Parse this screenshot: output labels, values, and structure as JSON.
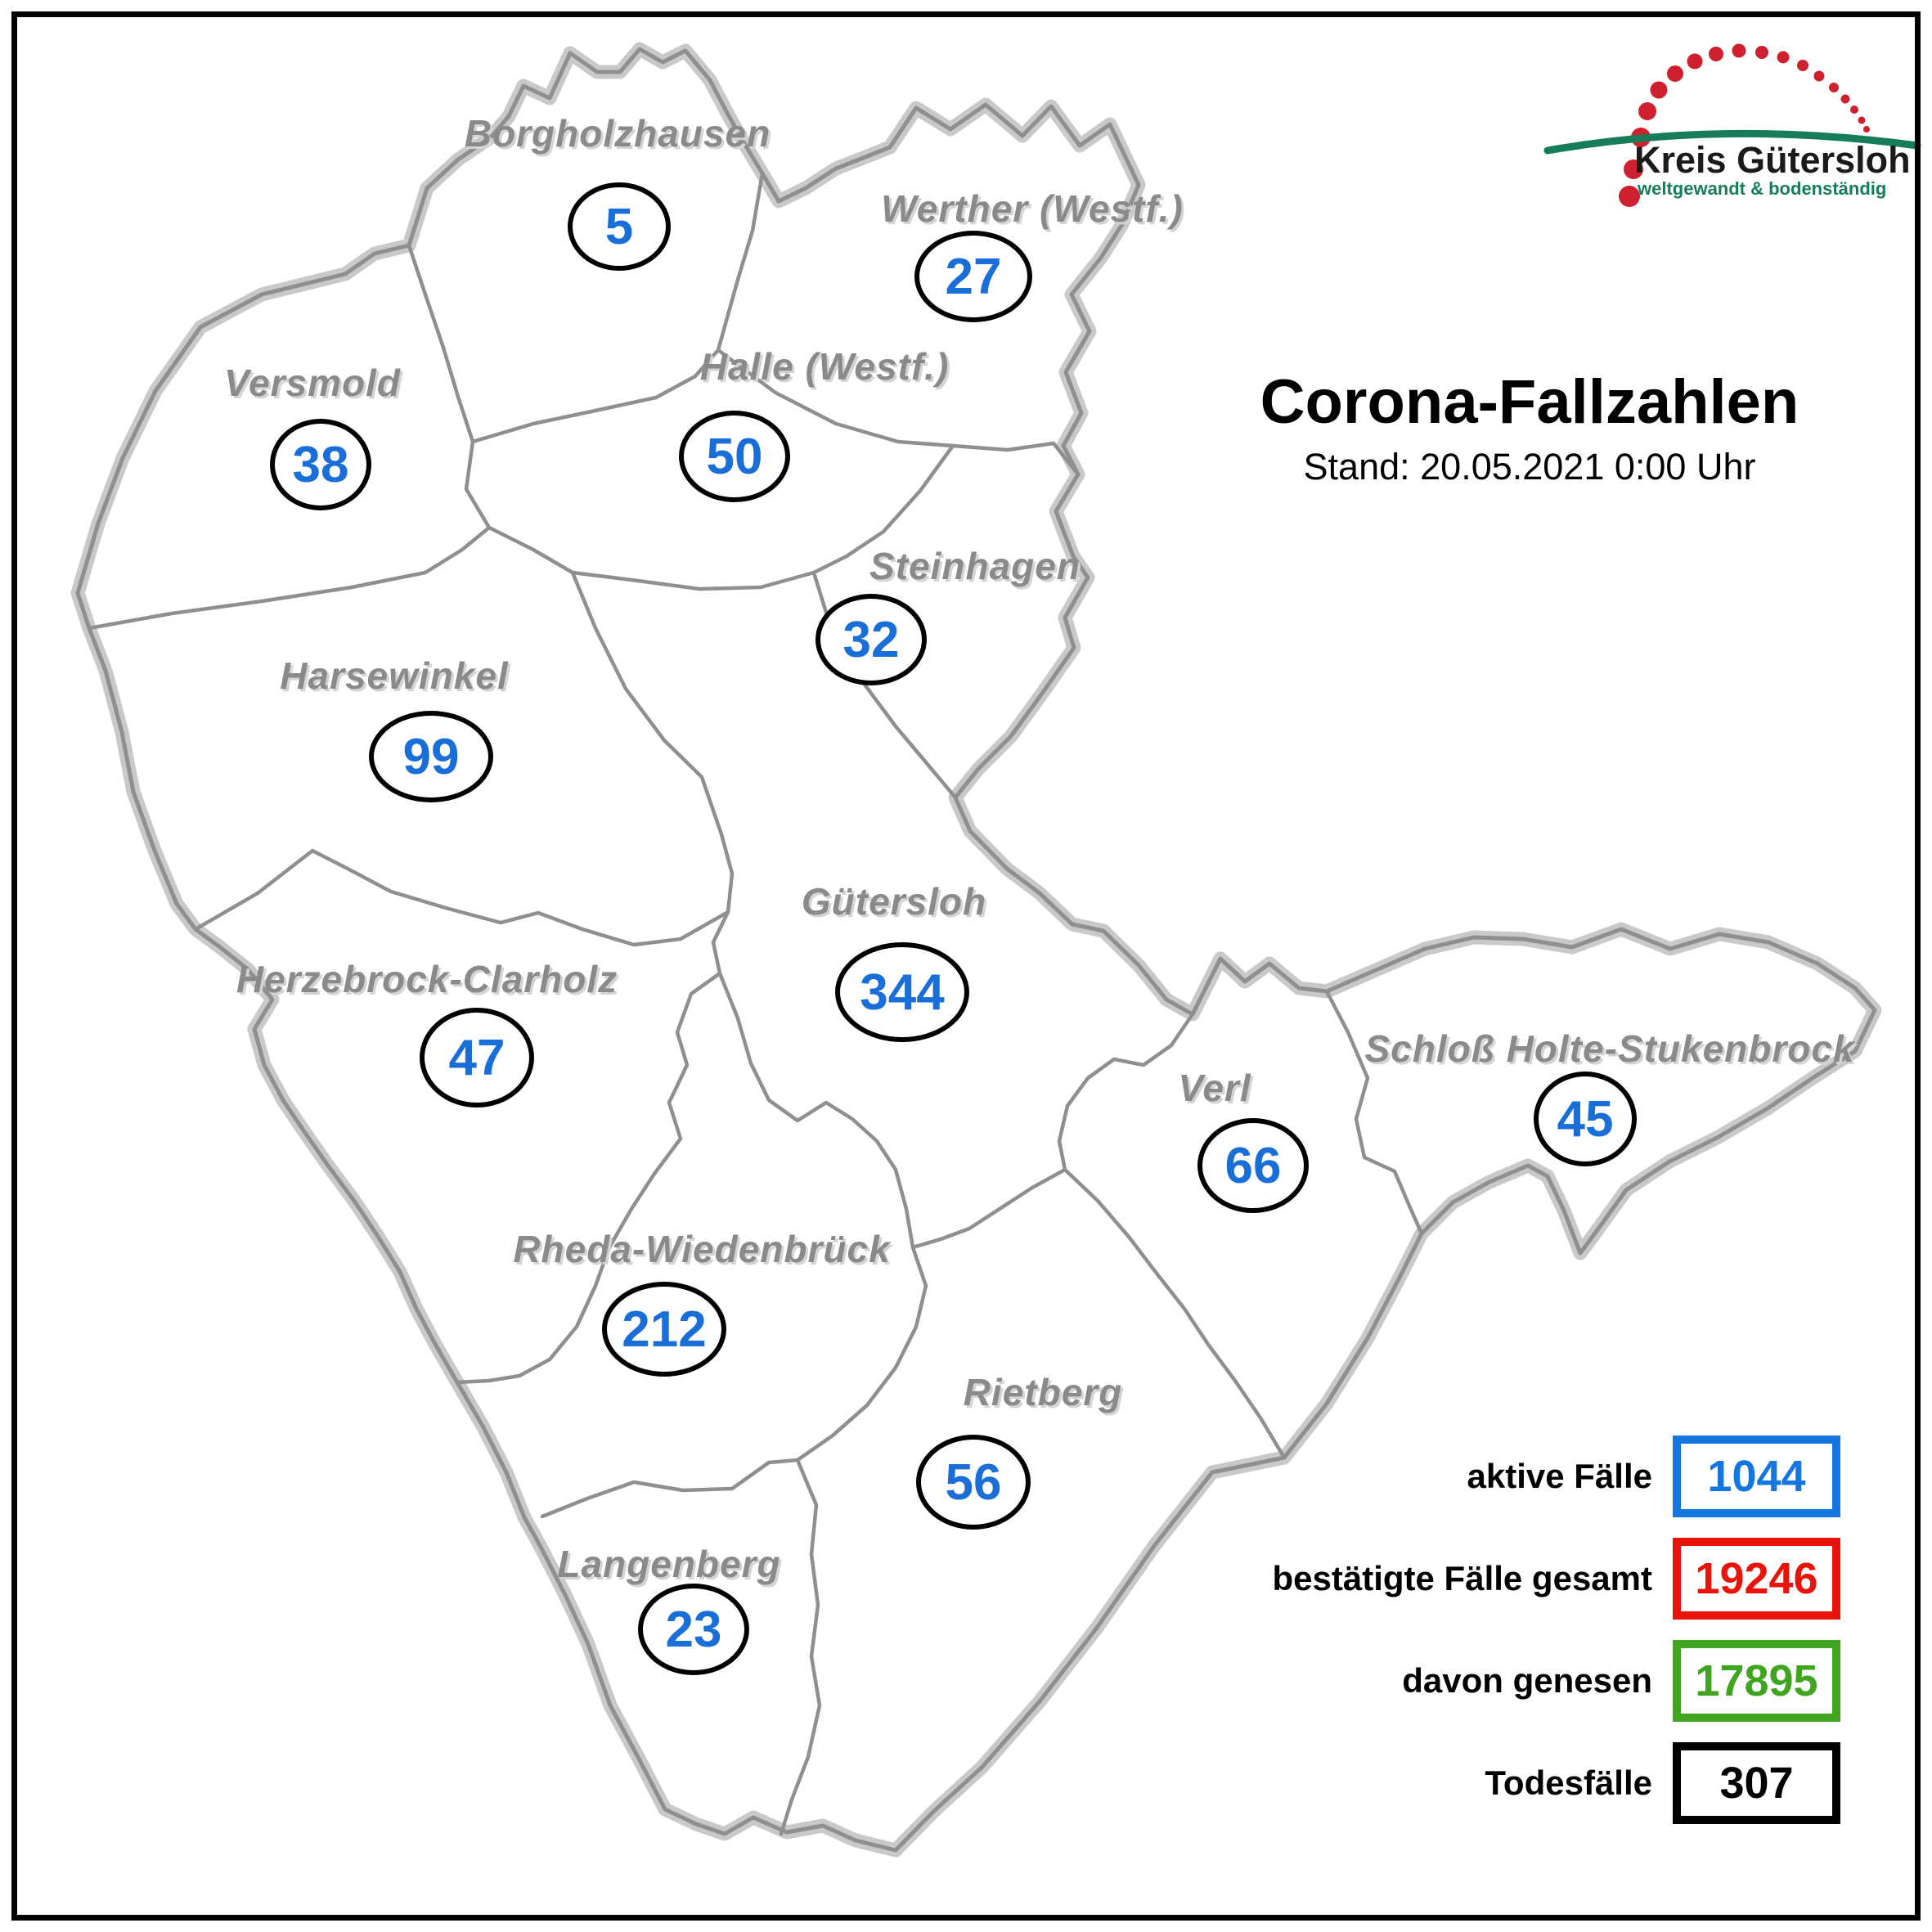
{
  "header": {
    "title": "Corona-Fallzahlen",
    "subtitle": "Stand: 20.05.2021 0:00 Uhr"
  },
  "logo": {
    "name": "Kreis Gütersloh",
    "tagline": "weltgewandt & bodenständig",
    "dot_color": "#cf2030",
    "swoosh_color": "#177d58"
  },
  "map": {
    "kind": "choropleth-count-map",
    "number_color": "#1a6ed8",
    "label_color": "#8a8a8a",
    "border_color": "#8f8f8f",
    "outer_shadow_color": "#c9c9c9"
  },
  "regions": [
    {
      "name": "Borgholzhausen",
      "cases": "5"
    },
    {
      "name": "Werther (Westf.)",
      "cases": "27"
    },
    {
      "name": "Versmold",
      "cases": "38"
    },
    {
      "name": "Halle (Westf.)",
      "cases": "50"
    },
    {
      "name": "Steinhagen",
      "cases": "32"
    },
    {
      "name": "Harsewinkel",
      "cases": "99"
    },
    {
      "name": "Gütersloh",
      "cases": "344"
    },
    {
      "name": "Herzebrock-Clarholz",
      "cases": "47"
    },
    {
      "name": "Verl",
      "cases": "66"
    },
    {
      "name": "Schloß Holte-Stukenbrock",
      "cases": "45"
    },
    {
      "name": "Rheda-Wiedenbrück",
      "cases": "212"
    },
    {
      "name": "Rietberg",
      "cases": "56"
    },
    {
      "name": "Langenberg",
      "cases": "23"
    }
  ],
  "legend": {
    "rows": [
      {
        "label": "aktive Fälle",
        "value": "1044",
        "color": "#1476e0"
      },
      {
        "label": "bestätigte Fälle gesamt",
        "value": "19246",
        "color": "#e81309"
      },
      {
        "label": "davon genesen",
        "value": "17895",
        "color": "#3fa51e"
      },
      {
        "label": "Todesfälle",
        "value": "307",
        "color": "#000000"
      }
    ]
  }
}
